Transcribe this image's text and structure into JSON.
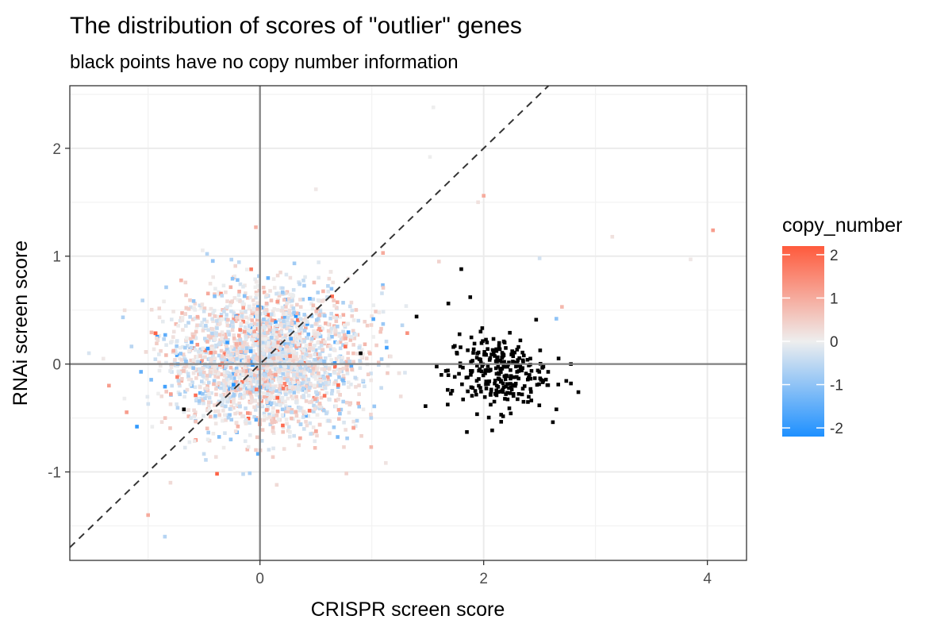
{
  "chart_data": {
    "type": "scatter",
    "title": "The distribution of scores of \"outlier\" genes",
    "subtitle": "black points have no copy number information",
    "xlabel": "CRISPR screen score",
    "ylabel": "RNAi screen score",
    "xlim": [
      -1.7,
      4.35
    ],
    "ylim": [
      -1.82,
      2.58
    ],
    "x_ticks": [
      0,
      2,
      4
    ],
    "x_tick_labels": [
      "0",
      "2",
      "4"
    ],
    "y_ticks": [
      -1,
      0,
      1,
      2
    ],
    "y_tick_labels": [
      "-1",
      "0",
      "1",
      "2"
    ],
    "x_minor_ticks": [
      -1,
      1,
      3
    ],
    "y_minor_ticks": [
      -1.5,
      -0.5,
      0.5,
      1.5,
      2.5
    ],
    "grid": true,
    "reference_lines": {
      "vertical_x": 0,
      "horizontal_y": 0,
      "diagonal_slope": 1,
      "diagonal_intercept": 0
    },
    "legend": {
      "title": "copy_number",
      "placement": "right",
      "range": [
        -2.2,
        2.2
      ],
      "breaks": [
        2,
        1,
        0,
        -1,
        -2
      ],
      "break_labels": [
        "2",
        "1",
        "0",
        "-1",
        "-2"
      ],
      "colors": {
        "low": "#1E90FF",
        "mid": "#EEEEEE",
        "high": "#FF5A3C"
      }
    },
    "series": [
      {
        "note_no_copy_number": "black",
        "points_description": "approx. clusters; points generated from cluster summaries",
        "clusters": [
          {
            "center_x": 0.05,
            "center_y": 0.05,
            "sd_x": 0.42,
            "sd_y": 0.32,
            "count": 2600,
            "has_copy_number": true
          },
          {
            "center_x": 2.12,
            "center_y": -0.08,
            "sd_x": 0.22,
            "sd_y": 0.18,
            "count": 260,
            "has_copy_number": false
          }
        ],
        "extra_points": [
          {
            "x": -1.35,
            "y": -0.2,
            "cn": 1.2
          },
          {
            "x": -1.0,
            "y": -1.4,
            "cn": 1.0
          },
          {
            "x": -0.85,
            "y": -1.6,
            "cn": -0.6
          },
          {
            "x": -0.8,
            "y": -1.1,
            "cn": 0.3
          },
          {
            "x": -1.1,
            "y": -0.58,
            "cn": -2.0
          },
          {
            "x": -1.4,
            "y": 0.05,
            "cn": 0.1
          },
          {
            "x": 1.55,
            "y": 2.38,
            "cn": 0.0
          },
          {
            "x": 2.0,
            "y": 1.56,
            "cn": 1.0
          },
          {
            "x": 1.95,
            "y": 1.5,
            "cn": 0.2
          },
          {
            "x": 0.5,
            "y": 1.62,
            "cn": 0.1
          },
          {
            "x": 1.1,
            "y": 1.03,
            "cn": 1.0
          },
          {
            "x": 2.5,
            "y": 0.98,
            "cn": -0.3
          },
          {
            "x": 3.15,
            "y": 1.18,
            "cn": 0.2
          },
          {
            "x": 3.85,
            "y": 0.97,
            "cn": 0.1
          },
          {
            "x": 4.05,
            "y": 1.24,
            "cn": 1.2
          },
          {
            "x": 2.7,
            "y": 0.53,
            "cn": 0.8
          },
          {
            "x": 2.65,
            "y": 0.42,
            "cn": -1.0
          },
          {
            "x": 1.6,
            "y": 0.95,
            "cn": 0.4
          },
          {
            "x": 1.52,
            "y": 1.92,
            "cn": 0.0
          },
          {
            "x": 0.15,
            "y": -1.12,
            "cn": 0.3
          },
          {
            "x": -0.15,
            "y": -1.02,
            "cn": -0.5
          },
          {
            "x": -0.68,
            "y": -0.42,
            "cn": 0.0,
            "black": true
          },
          {
            "x": 0.9,
            "y": 0.1,
            "cn": 0.0,
            "black": true
          },
          {
            "x": 1.8,
            "y": 0.88,
            "cn": 0.0,
            "black": true
          },
          {
            "x": 1.88,
            "y": 0.62,
            "cn": 0.0,
            "black": true
          },
          {
            "x": 1.85,
            "y": -0.63,
            "cn": 0.0,
            "black": true
          },
          {
            "x": 1.48,
            "y": -0.39,
            "cn": 0.0,
            "black": true
          },
          {
            "x": 2.65,
            "y": -0.42,
            "cn": 0.0,
            "black": true
          },
          {
            "x": 2.78,
            "y": -0.18,
            "cn": 0.0,
            "black": true
          },
          {
            "x": 2.78,
            "y": 0.0,
            "cn": 0.0,
            "black": true
          },
          {
            "x": 1.4,
            "y": 0.44,
            "cn": 0.0,
            "black": true
          }
        ]
      }
    ]
  }
}
